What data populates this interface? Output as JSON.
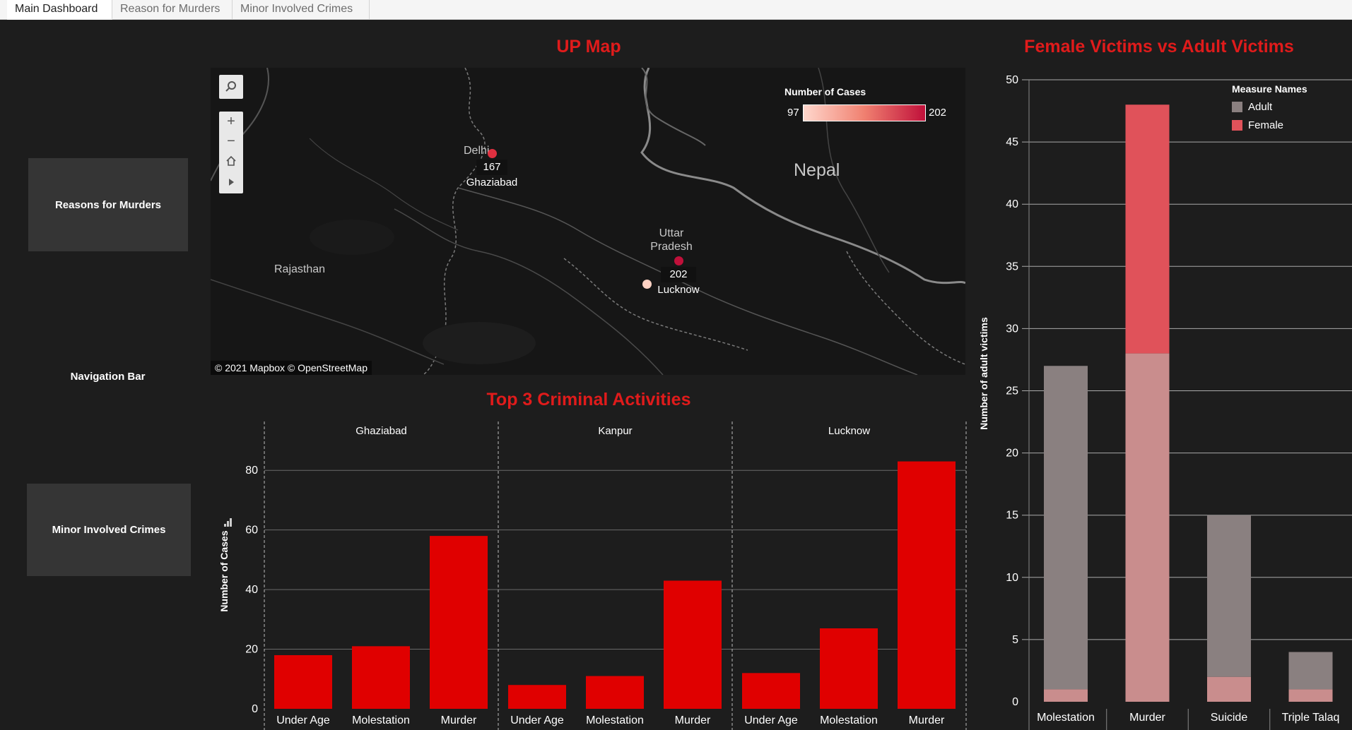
{
  "tabs": [
    {
      "label": "Main Dashboard",
      "active": true
    },
    {
      "label": "Reason for Murders",
      "active": false
    },
    {
      "label": "Minor Involved Crimes",
      "active": false
    }
  ],
  "nav": {
    "reasons_button": "Reasons for Murders",
    "title": "Navigation Bar",
    "minor_button": "Minor Involved Crimes"
  },
  "map": {
    "title": "UP Map",
    "legend_title": "Number of Cases",
    "legend_min": "97",
    "legend_max": "202",
    "attribution": "© 2021 Mapbox  © OpenStreetMap",
    "labels": {
      "delhi": "Delhi",
      "nepal": "Nepal",
      "rajasthan": "Rajasthan",
      "up_line1": "Uttar",
      "up_line2": "Pradesh"
    },
    "points": [
      {
        "city": "Ghaziabad",
        "value": "167"
      },
      {
        "city": "Lucknow",
        "value": "202"
      }
    ],
    "icons": {
      "search": "search-icon",
      "zoom_in": "plus-icon",
      "zoom_out": "minus-icon",
      "home": "home-icon",
      "play": "play-icon"
    }
  },
  "top3": {
    "title": "Top 3 Criminal Activities",
    "ylabel": "Number of Cases",
    "chart_data": {
      "type": "bar",
      "panels": [
        "Ghaziabad",
        "Kanpur",
        "Lucknow"
      ],
      "categories": [
        "Under Age",
        "Molestation",
        "Murder"
      ],
      "values": [
        [
          18,
          21,
          58
        ],
        [
          8,
          11,
          43
        ],
        [
          12,
          27,
          83
        ]
      ],
      "ylim": [
        0,
        90
      ],
      "yticks": [
        0,
        20,
        40,
        60,
        80
      ],
      "color": "#e00000"
    }
  },
  "victims": {
    "title": "Female Victims vs Adult Victims",
    "ylabel": "Number of adult victims",
    "legend_title": "Measure Names",
    "chart_data": {
      "type": "bar",
      "categories": [
        "Molestation",
        "Murder",
        "Suicide",
        "Triple Talaq"
      ],
      "series": [
        {
          "name": "Adult",
          "values": [
            27,
            28,
            15,
            4
          ],
          "color": "#8a8080"
        },
        {
          "name": "Female",
          "values": [
            1,
            48,
            2,
            1
          ],
          "color": "#e0525a"
        }
      ],
      "overlap_color": "#c98d8d",
      "ylim": [
        0,
        50
      ],
      "yticks": [
        0,
        5,
        10,
        15,
        20,
        25,
        30,
        35,
        40,
        45,
        50
      ]
    }
  }
}
